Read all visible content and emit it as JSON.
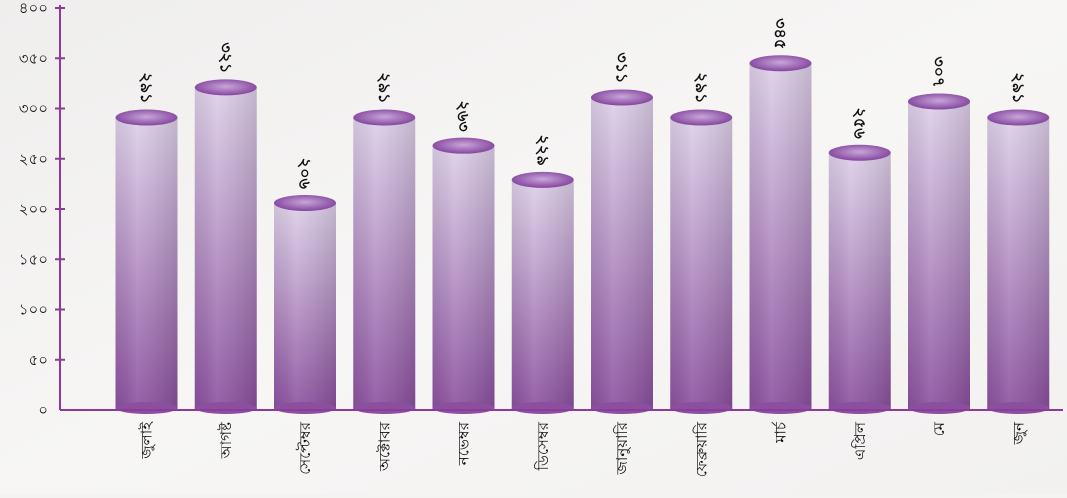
{
  "chart_data": {
    "type": "bar",
    "title": "",
    "xlabel": "",
    "ylabel": "",
    "ylim": [
      0,
      400
    ],
    "yticks": [
      0,
      50,
      100,
      150,
      200,
      250,
      300,
      350,
      400
    ],
    "ytick_labels": [
      "০",
      "৫০",
      "১০০",
      "১৫০",
      "২০০",
      "২৫০",
      "৩০০",
      "৩৫০",
      "৪০০"
    ],
    "categories": [
      "জুলাই",
      "আগষ্ট",
      "সেপ্টেম্বর",
      "অক্টোবর",
      "নভেম্বর",
      "ডিসেম্বর",
      "জানুয়ারি",
      "ফেব্রুয়ারি",
      "মার্চ",
      "এপ্রিল",
      "মে",
      "জুন"
    ],
    "values": [
      291,
      321,
      206,
      291,
      263,
      229,
      311,
      291,
      345,
      256,
      307,
      291
    ],
    "value_labels": [
      "২৯১",
      "৩২১",
      "২০৬",
      "২৯১",
      "২৬৩",
      "২২৯",
      "৩১১",
      "২৯১",
      "৩৪৫",
      "২৫৬",
      "৩০৭",
      "২৯১"
    ],
    "grid": false,
    "legend": "none",
    "colors": {
      "bar_top": "#ddd0e8",
      "bar_bottom": "#8a4f9e",
      "bar_cap_light": "#c9a6d9",
      "bar_cap_dark": "#7d3c98",
      "axis": "#8e3a9a"
    }
  }
}
